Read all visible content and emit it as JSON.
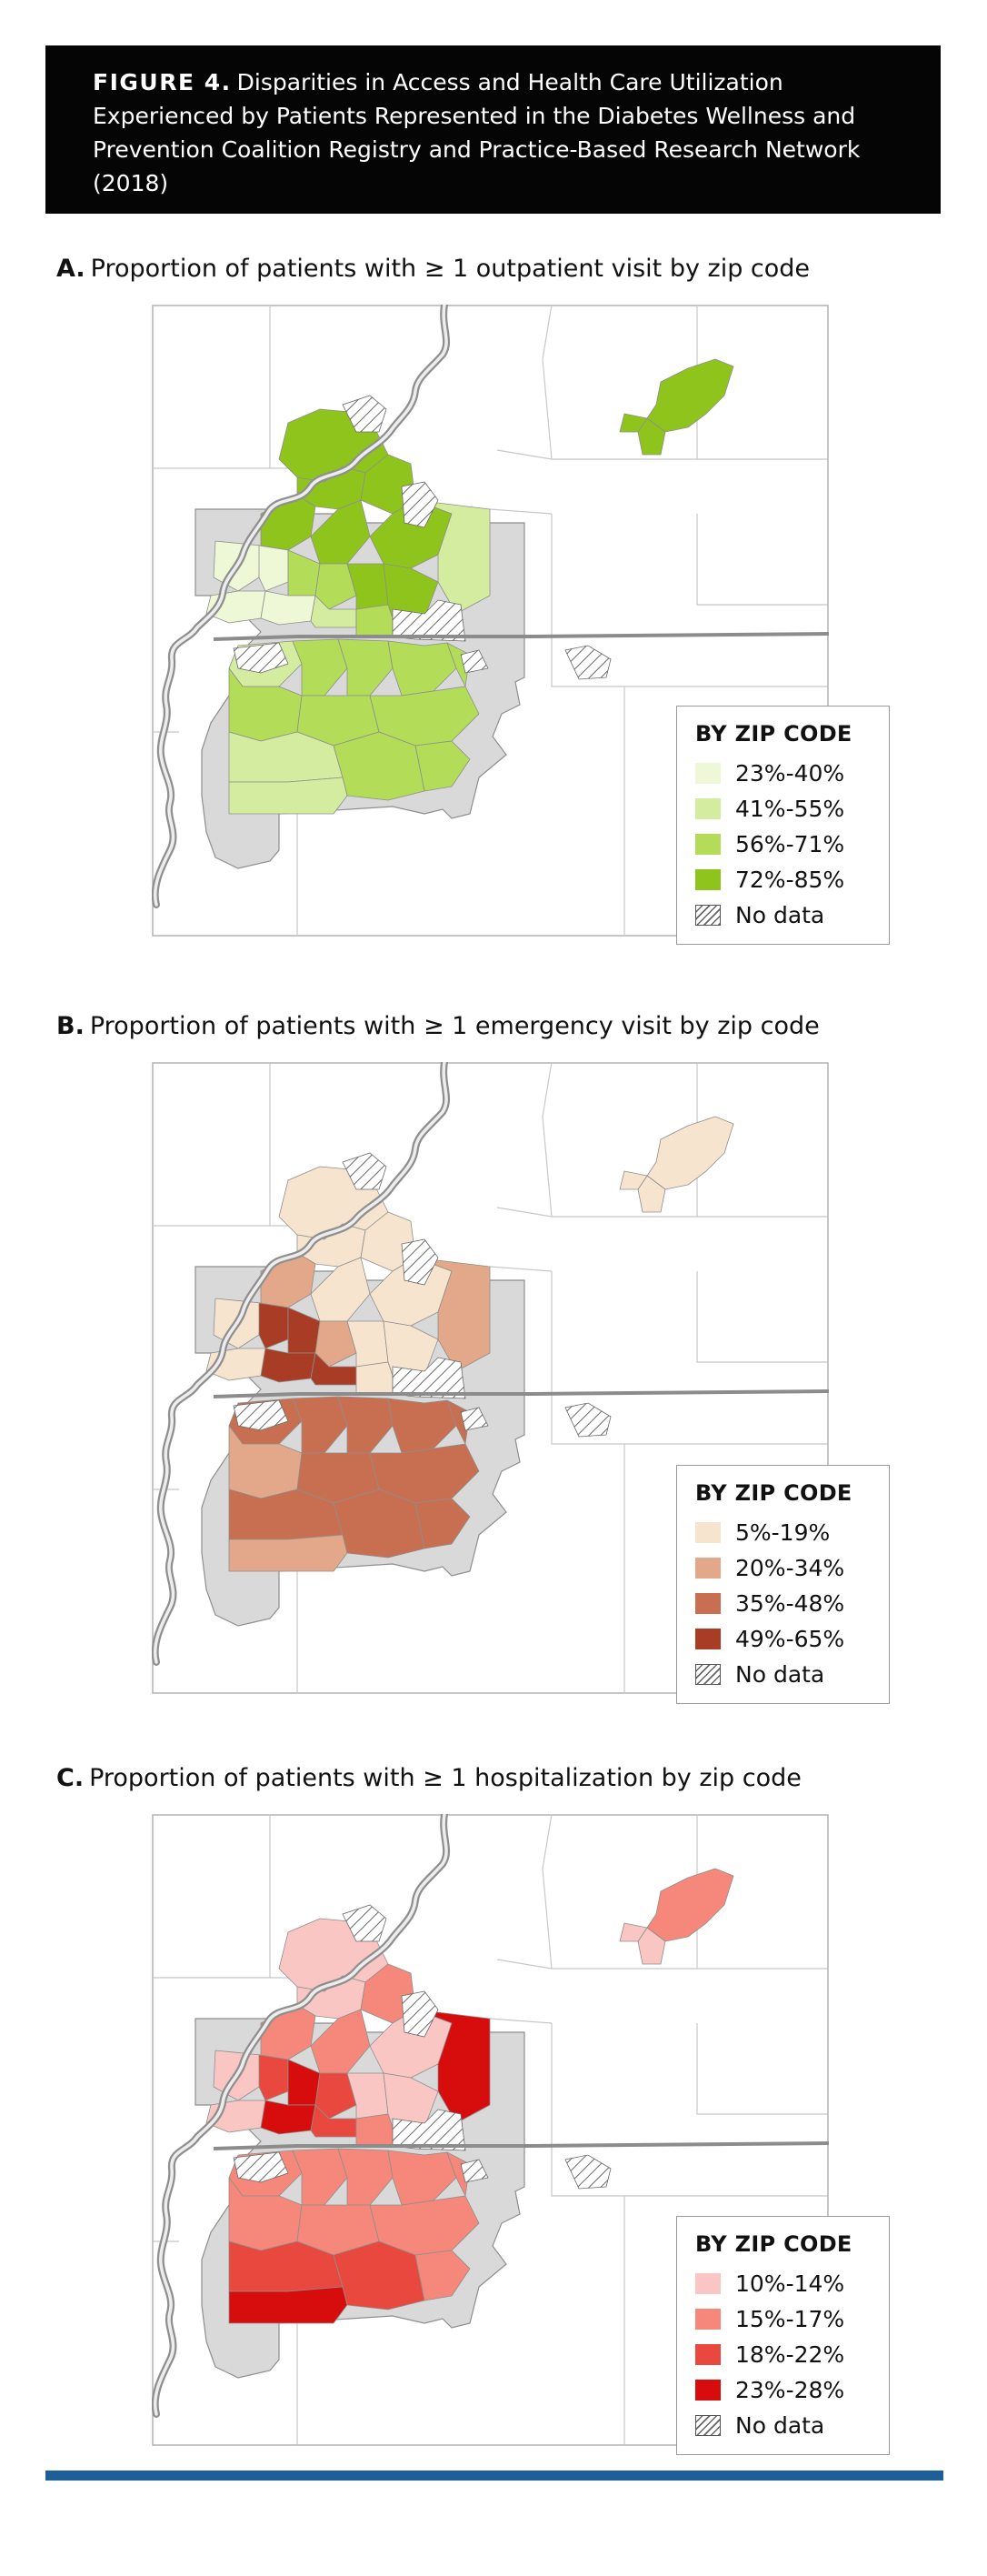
{
  "figure": {
    "label": "FIGURE 4.",
    "caption": "Disparities in Access and Health Care Utilization Experienced by Patients Represented in the Diabetes Wellness and Prevention Coalition Registry and Practice-Based Research Network (2018)"
  },
  "panels": [
    {
      "letter": "A.",
      "title": "Proportion of patients with ≥ 1 outpatient visit by zip code",
      "legend_title": "BY ZIP CODE",
      "legend": [
        {
          "label": "23%-40%",
          "color": "#eef8d6"
        },
        {
          "label": "41%-55%",
          "color": "#d4ec9f"
        },
        {
          "label": "56%-71%",
          "color": "#b3dc58"
        },
        {
          "label": "72%-85%",
          "color": "#8fc41c"
        },
        {
          "label": "No data",
          "color": "hatch"
        }
      ]
    },
    {
      "letter": "B.",
      "title": "Proportion of patients with ≥ 1 emergency visit by zip code",
      "legend_title": "BY ZIP CODE",
      "legend": [
        {
          "label": "5%-19%",
          "color": "#f7e4cf"
        },
        {
          "label": "20%-34%",
          "color": "#e3a88a"
        },
        {
          "label": "35%-48%",
          "color": "#c86f52"
        },
        {
          "label": "49%-65%",
          "color": "#a83c25"
        },
        {
          "label": "No data",
          "color": "hatch"
        }
      ]
    },
    {
      "letter": "C.",
      "title": "Proportion of patients with ≥ 1 hospitalization by zip code",
      "legend_title": "BY ZIP CODE",
      "legend": [
        {
          "label": "10%-14%",
          "color": "#f9c6c3"
        },
        {
          "label": "15%-17%",
          "color": "#f5887a"
        },
        {
          "label": "18%-22%",
          "color": "#e9483e"
        },
        {
          "label": "23%-28%",
          "color": "#d70d0d"
        },
        {
          "label": "No data",
          "color": "hatch"
        }
      ]
    }
  ]
}
